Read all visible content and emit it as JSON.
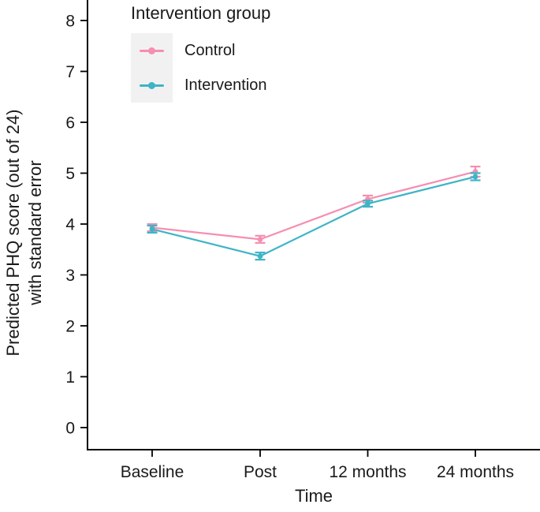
{
  "chart_data": {
    "type": "line",
    "title": "",
    "xlabel": "Time",
    "ylabel": "Predicted PHQ score (out of 24)\nwith standard error",
    "categories": [
      "Baseline",
      "Post",
      "12 months",
      "24 months"
    ],
    "series": [
      {
        "name": "Control",
        "color": "#F58FB0",
        "values": [
          3.93,
          3.7,
          4.49,
          5.03
        ],
        "standard_errors": [
          0.07,
          0.07,
          0.07,
          0.1
        ]
      },
      {
        "name": "Intervention",
        "color": "#3EB4C6",
        "values": [
          3.9,
          3.37,
          4.4,
          4.93
        ],
        "standard_errors": [
          0.07,
          0.07,
          0.06,
          0.07
        ]
      }
    ],
    "yticks": [
      "0",
      "1",
      "2",
      "3",
      "4",
      "5",
      "6",
      "7",
      "8"
    ],
    "ylim": [
      0,
      8.4
    ],
    "grid": false,
    "error_bars": true,
    "legend": {
      "title": "Intervention group",
      "position": "inside-top-left",
      "key_background": "#F1F1F1"
    },
    "axis_color": "#000000",
    "text_color": "#1A1A1A"
  }
}
